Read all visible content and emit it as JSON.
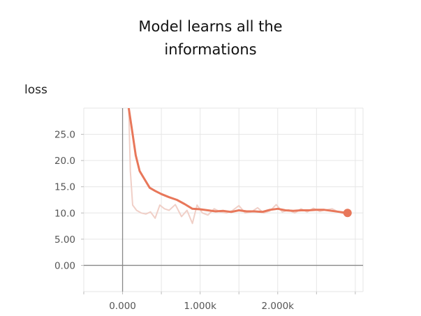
{
  "title_lines": [
    "Model learns all the",
    "informations"
  ],
  "section_label": "loss",
  "chart_data": {
    "type": "line",
    "title": "Model learns all the informations",
    "ylabel": "loss",
    "xlabel": "",
    "xlim": [
      -500,
      3100
    ],
    "ylim": [
      -5,
      30
    ],
    "x_ticks": [
      0,
      1000,
      2000
    ],
    "x_tick_labels": [
      "0.000",
      "1.000k",
      "2.000k"
    ],
    "y_ticks": [
      0,
      5,
      10,
      15,
      20,
      25
    ],
    "y_tick_labels": [
      "0.00",
      "5.00",
      "10.0",
      "15.0",
      "20.0",
      "25.0"
    ],
    "grid": true,
    "colors": {
      "smoothed": "#e8775a",
      "raw": "#f0cfc7",
      "zero_axis": "#888888",
      "grid": "#e6e6e6"
    },
    "series": [
      {
        "style": "smoothed",
        "x": [
          80,
          120,
          170,
          220,
          280,
          350,
          420,
          500,
          600,
          700,
          800,
          900,
          1000,
          1100,
          1200,
          1300,
          1400,
          1500,
          1600,
          1700,
          1800,
          1900,
          2000,
          2100,
          2200,
          2300,
          2400,
          2500,
          2600,
          2700,
          2800,
          2900
        ],
        "y": [
          30,
          26,
          21,
          18,
          16.5,
          14.8,
          14.2,
          13.6,
          13.0,
          12.5,
          11.7,
          10.8,
          10.7,
          10.5,
          10.3,
          10.4,
          10.2,
          10.5,
          10.3,
          10.3,
          10.2,
          10.6,
          10.8,
          10.5,
          10.4,
          10.5,
          10.5,
          10.6,
          10.6,
          10.4,
          10.2,
          10.0
        ]
      },
      {
        "style": "raw",
        "x": [
          80,
          100,
          130,
          180,
          240,
          300,
          360,
          420,
          480,
          540,
          600,
          680,
          760,
          830,
          900,
          960,
          1030,
          1100,
          1180,
          1260,
          1340,
          1420,
          1500,
          1580,
          1660,
          1740,
          1820,
          1900,
          1980,
          2060,
          2140,
          2220,
          2300,
          2380,
          2460,
          2540,
          2620,
          2700,
          2780,
          2860,
          2900
        ],
        "y": [
          30,
          18,
          11.5,
          10.5,
          10.0,
          9.8,
          10.2,
          9.0,
          11.5,
          10.8,
          10.5,
          11.6,
          9.3,
          10.5,
          8.0,
          11.5,
          10.0,
          9.6,
          10.8,
          10.2,
          10.0,
          10.5,
          11.4,
          10.0,
          10.2,
          11.0,
          10.0,
          10.4,
          11.6,
          10.2,
          10.6,
          10.0,
          10.8,
          10.2,
          10.9,
          10.3,
          10.6,
          10.8,
          10.2,
          9.8,
          10.0
        ]
      }
    ]
  }
}
